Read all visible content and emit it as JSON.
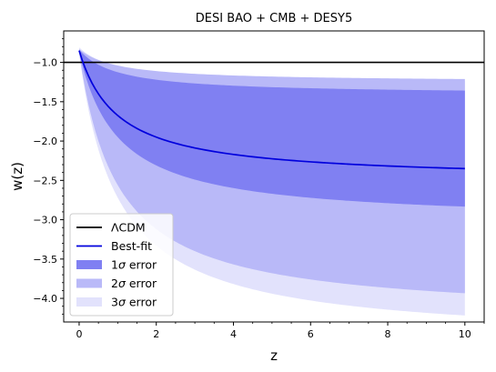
{
  "chart_data": {
    "type": "area",
    "title": "DESI BAO + CMB + DESY5",
    "xlabel": "z",
    "ylabel": "w(z)",
    "xlim": [
      -0.4,
      10.5
    ],
    "ylim": [
      -4.3,
      -0.6
    ],
    "x_ticks": [
      0,
      2,
      4,
      6,
      8,
      10
    ],
    "y_ticks": [
      -1.0,
      -1.5,
      -2.0,
      -2.5,
      -3.0,
      -3.5,
      -4.0
    ],
    "x_tick_labels": [
      "0",
      "2",
      "4",
      "6",
      "8",
      "10"
    ],
    "y_tick_labels": [
      "−1.0",
      "−1.5",
      "−2.0",
      "−2.5",
      "−3.0",
      "−3.5",
      "−4.0"
    ],
    "grid": false,
    "legend_position": "lower-left",
    "reference_line": {
      "name": "ΛCDM",
      "y": -1.0,
      "color": "#000000"
    },
    "best_fit": {
      "name": "Best-fit",
      "color": "#0000dd",
      "w0": -0.85,
      "wa": -1.65
    },
    "bands": [
      {
        "name": "3σ error",
        "color": "#e2e2fc",
        "w0": [
          -0.81,
          -0.89
        ],
        "wa": [
          -0.47,
          -3.66
        ]
      },
      {
        "name": "2σ error",
        "color": "#b9b9f8",
        "w0": [
          -0.83,
          -0.88
        ],
        "wa": [
          -0.42,
          -3.36
        ]
      },
      {
        "name": "1σ error",
        "color": "#8080f2",
        "w0": [
          -0.84,
          -0.87
        ],
        "wa": [
          -0.57,
          -2.16
        ]
      }
    ],
    "legend": [
      {
        "name": "ΛCDM",
        "kind": "line",
        "color": "#000000"
      },
      {
        "name": "Best-fit",
        "kind": "line",
        "color": "#0000dd"
      },
      {
        "name_prefix": "1",
        "name_symbol": "σ",
        "name_suffix": " error",
        "kind": "patch",
        "color": "#8080f2"
      },
      {
        "name_prefix": "2",
        "name_symbol": "σ",
        "name_suffix": " error",
        "kind": "patch",
        "color": "#b9b9f8"
      },
      {
        "name_prefix": "3",
        "name_symbol": "σ",
        "name_suffix": " error",
        "kind": "patch",
        "color": "#e2e2fc"
      }
    ]
  }
}
